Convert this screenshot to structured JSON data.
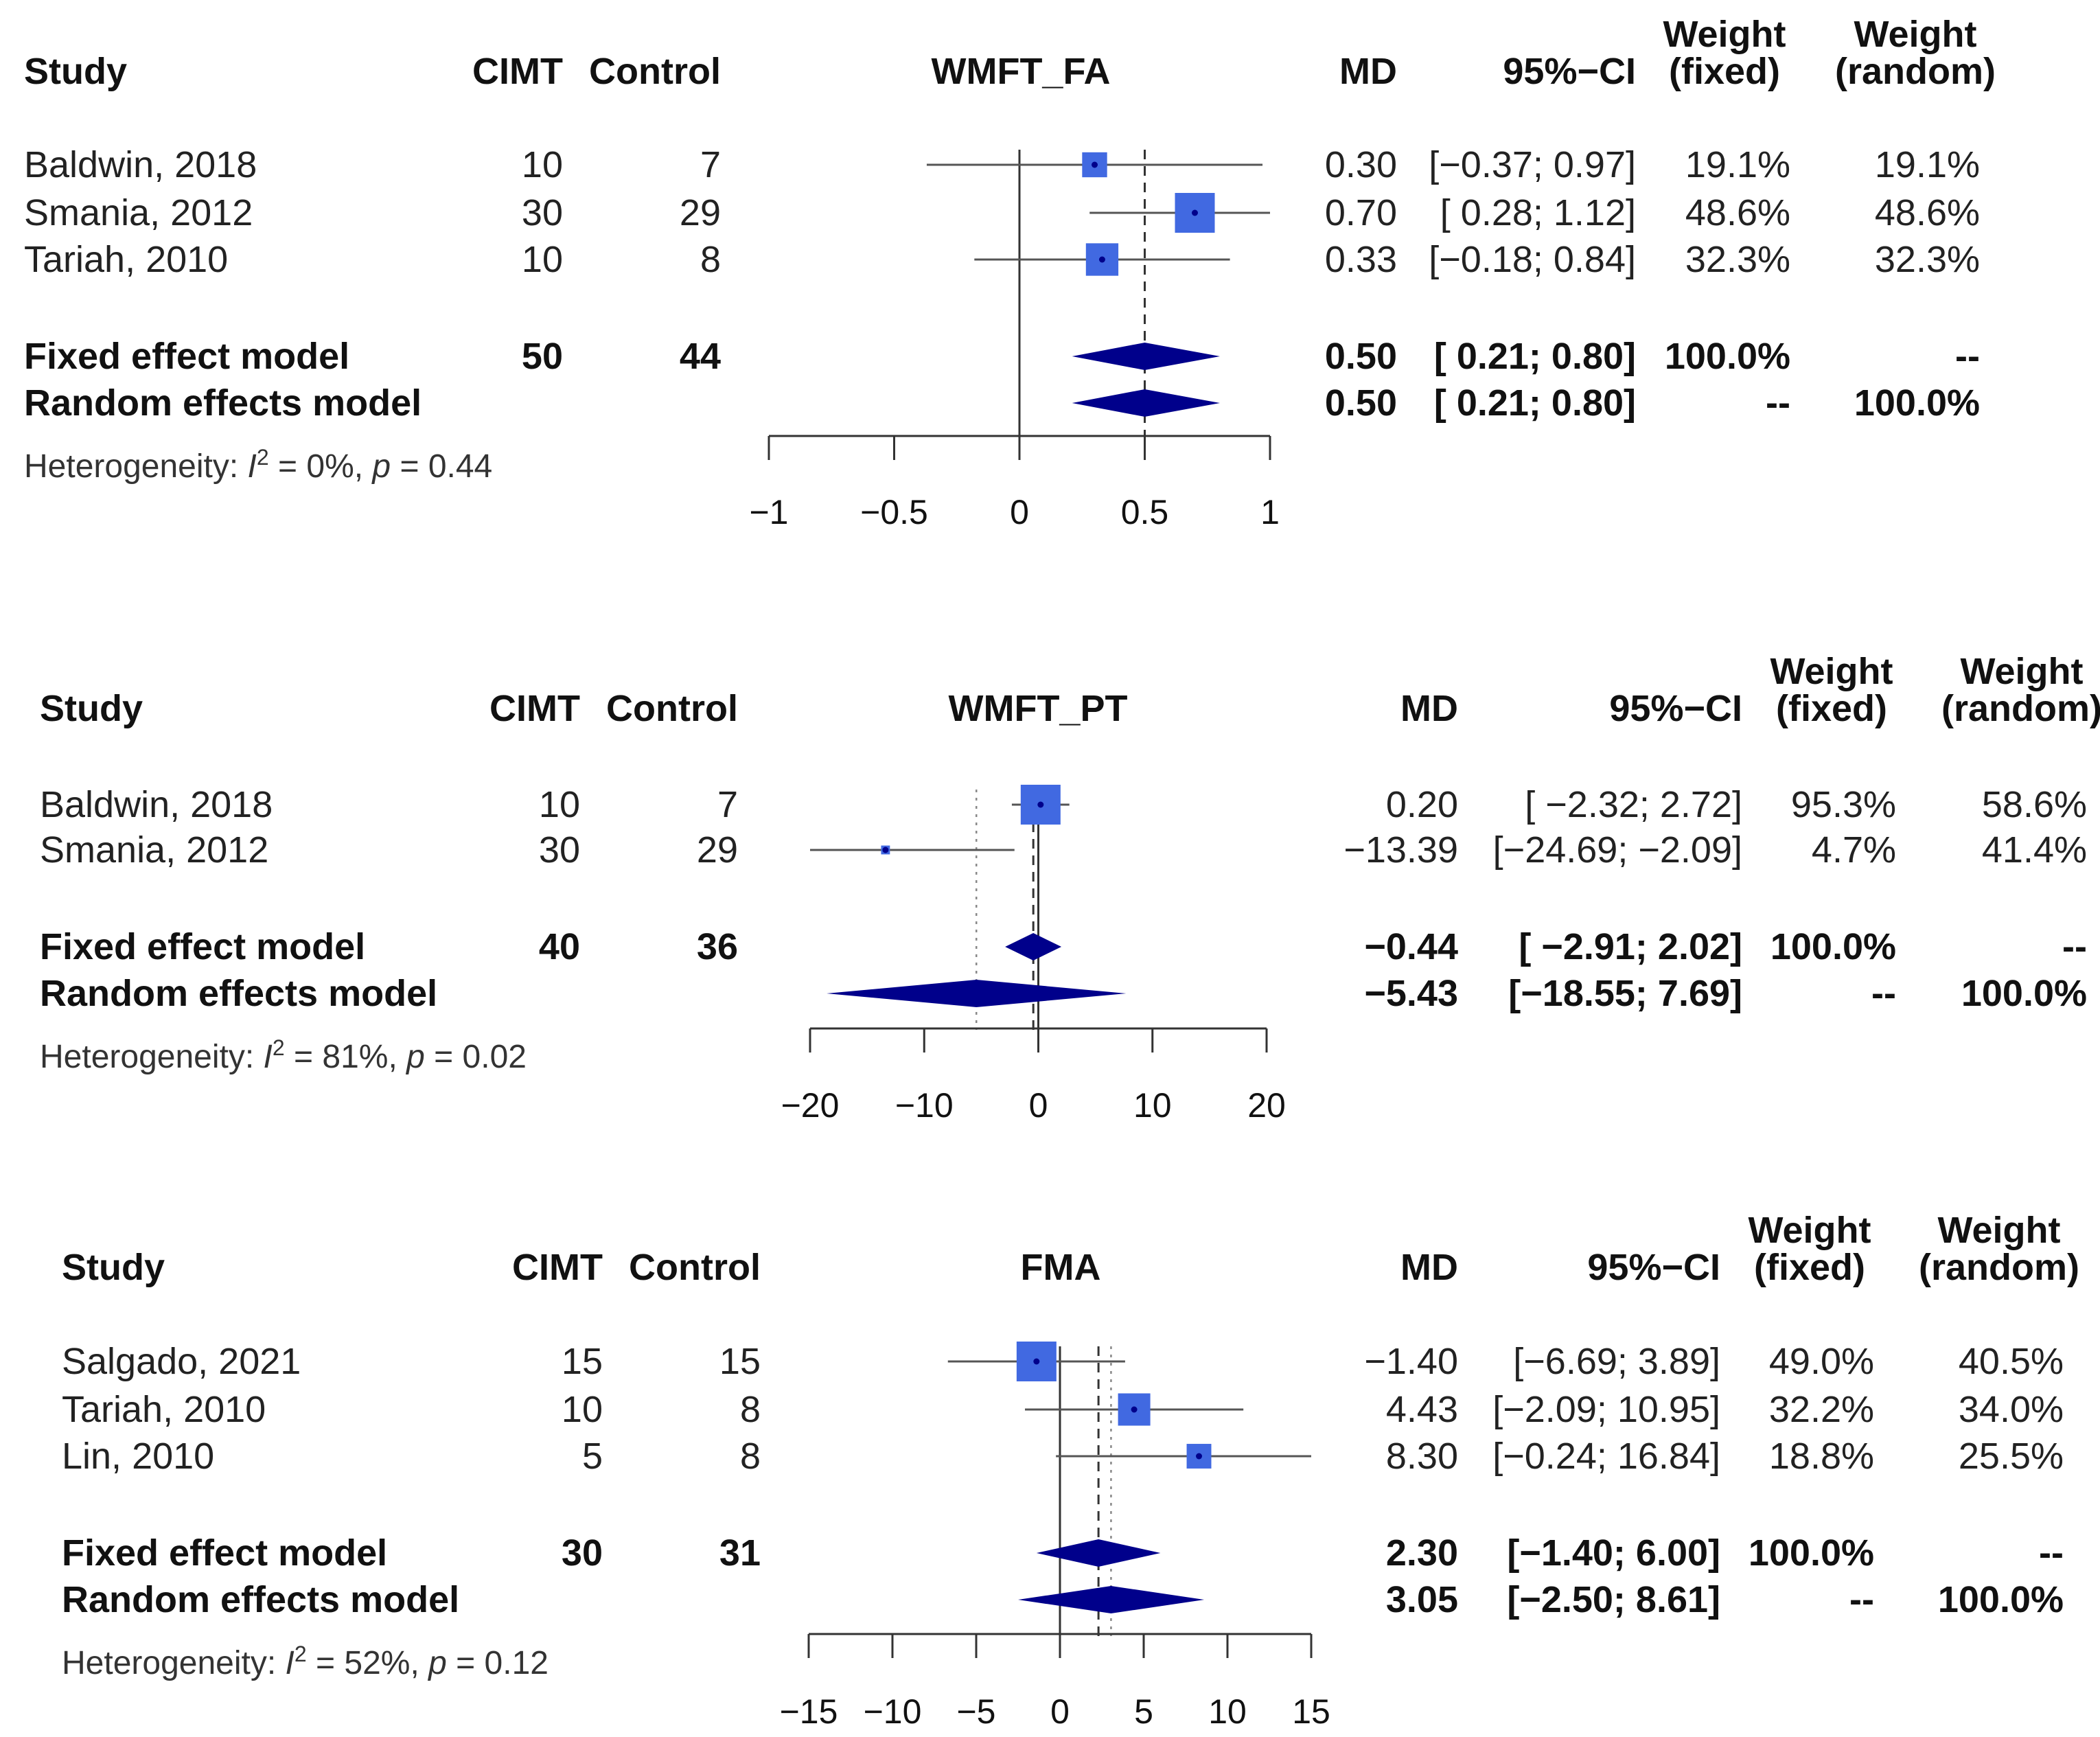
{
  "colors": {
    "square": "#4169e1",
    "diamond": "#00008b",
    "line": "#555555",
    "text": "#111111"
  },
  "headers": {
    "study": "Study",
    "cimt": "CIMT",
    "control": "Control",
    "md": "MD",
    "ci": "95%−CI",
    "weight": "Weight",
    "fixed": "(fixed)",
    "random": "(random)"
  },
  "chart_data": [
    {
      "type": "forest",
      "title": "WMFT_FA",
      "xlim": [
        -1,
        1
      ],
      "ticks": [
        -1,
        -0.5,
        0,
        0.5,
        1
      ],
      "tick_labels": [
        "−1",
        "−0.5",
        "0",
        "0.5",
        "1"
      ],
      "studies": [
        {
          "study": "Baldwin, 2018",
          "cimt": "10",
          "control": "7",
          "md": 0.3,
          "lo": -0.37,
          "hi": 0.97,
          "md_text": "0.30",
          "ci_text": "[−0.37; 0.97]",
          "wf_text": "19.1%",
          "wr_text": "19.1%",
          "wf": 19.1
        },
        {
          "study": "Smania, 2012",
          "cimt": "30",
          "control": "29",
          "md": 0.7,
          "lo": 0.28,
          "hi": 1.12,
          "md_text": "0.70",
          "ci_text": "[ 0.28; 1.12]",
          "wf_text": "48.6%",
          "wr_text": "48.6%",
          "wf": 48.6
        },
        {
          "study": "Tariah, 2010",
          "cimt": "10",
          "control": "8",
          "md": 0.33,
          "lo": -0.18,
          "hi": 0.84,
          "md_text": "0.33",
          "ci_text": "[−0.18; 0.84]",
          "wf_text": "32.3%",
          "wr_text": "32.3%",
          "wf": 32.3
        }
      ],
      "fixed": {
        "label": "Fixed effect model",
        "cimt": "50",
        "control": "44",
        "md": 0.5,
        "lo": 0.21,
        "hi": 0.8,
        "md_text": "0.50",
        "ci_text": "[ 0.21; 0.80]",
        "wf_text": "100.0%",
        "wr_text": "--"
      },
      "random": {
        "label": "Random effects model",
        "md": 0.5,
        "lo": 0.21,
        "hi": 0.8,
        "md_text": "0.50",
        "ci_text": "[ 0.21; 0.80]",
        "wf_text": "--",
        "wr_text": "100.0%"
      },
      "het_prefix": "Heterogeneity: ",
      "het_i": "I",
      "het_sup": "2",
      "het_rest": " = 0%, ",
      "het_p": "p",
      "het_pval": " = 0.44"
    },
    {
      "type": "forest",
      "title": "WMFT_PT",
      "xlim": [
        -20,
        20
      ],
      "ticks": [
        -20,
        -10,
        0,
        10,
        20
      ],
      "tick_labels": [
        "−20",
        "−10",
        "0",
        "10",
        "20"
      ],
      "studies": [
        {
          "study": "Baldwin, 2018",
          "cimt": "10",
          "control": "7",
          "md": 0.2,
          "lo": -2.32,
          "hi": 2.72,
          "md_text": "0.20",
          "ci_text": "[ −2.32;  2.72]",
          "wf_text": "95.3%",
          "wr_text": "58.6%",
          "wf": 95.3
        },
        {
          "study": "Smania, 2012",
          "cimt": "30",
          "control": "29",
          "md": -13.39,
          "lo": -24.69,
          "hi": -2.09,
          "md_text": "−13.39",
          "ci_text": "[−24.69; −2.09]",
          "wf_text": "4.7%",
          "wr_text": "41.4%",
          "wf": 4.7
        }
      ],
      "fixed": {
        "label": "Fixed effect model",
        "cimt": "40",
        "control": "36",
        "md": -0.44,
        "lo": -2.91,
        "hi": 2.02,
        "md_text": "−0.44",
        "ci_text": "[ −2.91;  2.02]",
        "wf_text": "100.0%",
        "wr_text": "--"
      },
      "random": {
        "label": "Random effects model",
        "md": -5.43,
        "lo": -18.55,
        "hi": 7.69,
        "md_text": "−5.43",
        "ci_text": "[−18.55;  7.69]",
        "wf_text": "--",
        "wr_text": "100.0%"
      },
      "het_prefix": "Heterogeneity: ",
      "het_i": "I",
      "het_sup": "2",
      "het_rest": " = 81%, ",
      "het_p": "p",
      "het_pval": " = 0.02"
    },
    {
      "type": "forest",
      "title": "FMA",
      "xlim": [
        -15,
        15
      ],
      "ticks": [
        -15,
        -10,
        -5,
        0,
        5,
        10,
        15
      ],
      "tick_labels": [
        "−15",
        "−10",
        "−5",
        "0",
        "5",
        "10",
        "15"
      ],
      "studies": [
        {
          "study": "Salgado, 2021",
          "cimt": "15",
          "control": "15",
          "md": -1.4,
          "lo": -6.69,
          "hi": 3.89,
          "md_text": "−1.40",
          "ci_text": "[−6.69;  3.89]",
          "wf_text": "49.0%",
          "wr_text": "40.5%",
          "wf": 49.0
        },
        {
          "study": "Tariah, 2010",
          "cimt": "10",
          "control": "8",
          "md": 4.43,
          "lo": -2.09,
          "hi": 10.95,
          "md_text": "4.43",
          "ci_text": "[−2.09; 10.95]",
          "wf_text": "32.2%",
          "wr_text": "34.0%",
          "wf": 32.2
        },
        {
          "study": "Lin, 2010",
          "cimt": "5",
          "control": "8",
          "md": 8.3,
          "lo": -0.24,
          "hi": 16.84,
          "md_text": "8.30",
          "ci_text": "[−0.24; 16.84]",
          "wf_text": "18.8%",
          "wr_text": "25.5%",
          "wf": 18.8
        }
      ],
      "fixed": {
        "label": "Fixed effect model",
        "cimt": "30",
        "control": "31",
        "md": 2.3,
        "lo": -1.4,
        "hi": 6.0,
        "md_text": "2.30",
        "ci_text": "[−1.40;  6.00]",
        "wf_text": "100.0%",
        "wr_text": "--"
      },
      "random": {
        "label": "Random effects model",
        "md": 3.05,
        "lo": -2.5,
        "hi": 8.61,
        "md_text": "3.05",
        "ci_text": "[−2.50;  8.61]",
        "wf_text": "--",
        "wr_text": "100.0%"
      },
      "het_prefix": "Heterogeneity: ",
      "het_i": "I",
      "het_sup": "2",
      "het_rest": " = 52%, ",
      "het_p": "p",
      "het_pval": " = 0.12"
    }
  ]
}
